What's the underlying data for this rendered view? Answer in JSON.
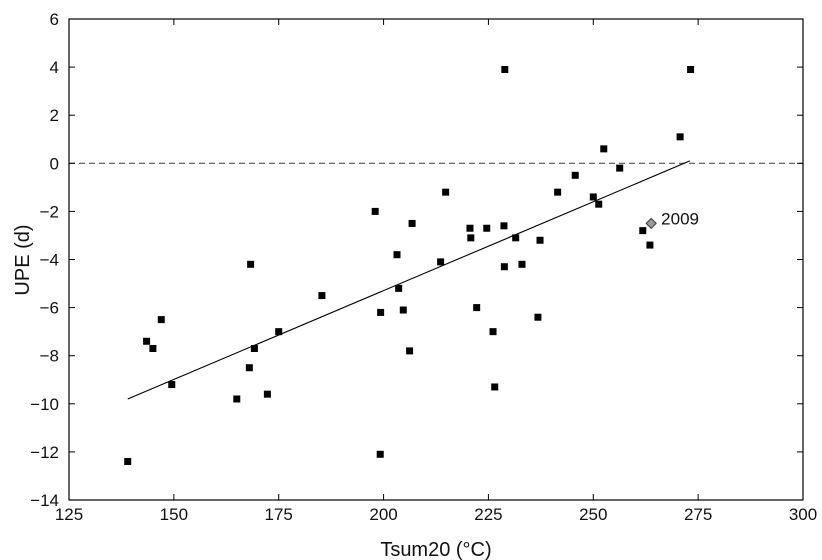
{
  "chart_data": {
    "type": "scatter",
    "xlabel": "Tsum20 (°C)",
    "ylabel": "UPE (d)",
    "xlim": [
      125,
      300
    ],
    "ylim": [
      -14,
      6
    ],
    "xticks": [
      "125",
      "150",
      "175",
      "200",
      "225",
      "250",
      "275",
      "300"
    ],
    "yticks": [
      "−14",
      "−12",
      "−10",
      "−8",
      "−6",
      "−4",
      "−2",
      "0",
      "2",
      "4",
      "6"
    ],
    "grid": false,
    "points": [
      {
        "x": 139,
        "y": -12.4
      },
      {
        "x": 143.5,
        "y": -7.4
      },
      {
        "x": 145,
        "y": -7.7
      },
      {
        "x": 147,
        "y": -6.5
      },
      {
        "x": 149.5,
        "y": -9.2
      },
      {
        "x": 165,
        "y": -9.8
      },
      {
        "x": 168,
        "y": -8.5
      },
      {
        "x": 168.3,
        "y": -4.2
      },
      {
        "x": 169.2,
        "y": -7.7
      },
      {
        "x": 172.3,
        "y": -9.6
      },
      {
        "x": 175,
        "y": -7.0
      },
      {
        "x": 185.3,
        "y": -5.5
      },
      {
        "x": 198,
        "y": -2.0
      },
      {
        "x": 199.2,
        "y": -12.1
      },
      {
        "x": 199.3,
        "y": -6.2
      },
      {
        "x": 203.2,
        "y": -3.8
      },
      {
        "x": 203.6,
        "y": -5.2
      },
      {
        "x": 204.7,
        "y": -6.1
      },
      {
        "x": 206.2,
        "y": -7.8
      },
      {
        "x": 206.8,
        "y": -2.5
      },
      {
        "x": 213.6,
        "y": -4.1
      },
      {
        "x": 214.8,
        "y": -1.2
      },
      {
        "x": 220.6,
        "y": -2.7
      },
      {
        "x": 220.8,
        "y": -3.1
      },
      {
        "x": 222.2,
        "y": -6.0
      },
      {
        "x": 224.6,
        "y": -2.7
      },
      {
        "x": 226.1,
        "y": -7.0
      },
      {
        "x": 226.5,
        "y": -9.3
      },
      {
        "x": 228.7,
        "y": -2.6
      },
      {
        "x": 228.8,
        "y": -4.3
      },
      {
        "x": 228.9,
        "y": 3.9
      },
      {
        "x": 231.5,
        "y": -3.1
      },
      {
        "x": 233,
        "y": -4.2
      },
      {
        "x": 236.8,
        "y": -6.4
      },
      {
        "x": 237.3,
        "y": -3.2
      },
      {
        "x": 241.5,
        "y": -1.2
      },
      {
        "x": 245.7,
        "y": -0.5
      },
      {
        "x": 250,
        "y": -1.4
      },
      {
        "x": 251.3,
        "y": -1.7
      },
      {
        "x": 252.5,
        "y": 0.6
      },
      {
        "x": 256.3,
        "y": -0.2
      },
      {
        "x": 261.8,
        "y": -2.8
      },
      {
        "x": 263.5,
        "y": -3.4
      },
      {
        "x": 270.7,
        "y": 1.1
      },
      {
        "x": 273.2,
        "y": 3.9
      }
    ],
    "highlight": {
      "x": 263.8,
      "y": -2.5,
      "label": "2009"
    },
    "reference_line": {
      "y": 0,
      "style": "dashed"
    },
    "regression_line": {
      "x": [
        139,
        273
      ],
      "y": [
        -9.8,
        0.1
      ]
    }
  }
}
